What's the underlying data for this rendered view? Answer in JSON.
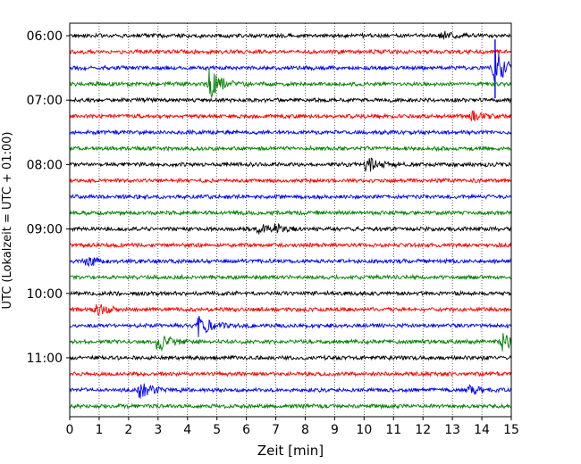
{
  "chart_data": {
    "type": "line",
    "title": "",
    "xlabel": "Zeit  [min]",
    "ylabel": "UTC (Lokalzeit = UTC + 01:00)",
    "xlim": [
      0,
      15
    ],
    "x_ticks": [
      0,
      1,
      2,
      3,
      4,
      5,
      6,
      7,
      8,
      9,
      10,
      11,
      12,
      13,
      14,
      15
    ],
    "x_tick_labels": [
      "0",
      "1",
      "2",
      "3",
      "4",
      "5",
      "6",
      "7",
      "8",
      "9",
      "10",
      "11",
      "12",
      "13",
      "14",
      "15"
    ],
    "y_tick_labels": [
      "06:00",
      "07:00",
      "08:00",
      "09:00",
      "10:00",
      "11:00"
    ],
    "grid": "vertical dotted lines at each minute",
    "colors": [
      "#000000",
      "#ff0000",
      "#0000ff",
      "#008000"
    ],
    "rows_per_hour": 4,
    "traces": [
      {
        "start": "06:00",
        "color": "#000000",
        "events": [
          {
            "x": 12.6,
            "amp": 0.25
          }
        ]
      },
      {
        "start": "06:15",
        "color": "#ff0000",
        "events": []
      },
      {
        "start": "06:30",
        "color": "#0000ff",
        "events": [
          {
            "x": 14.45,
            "amp": 1.0
          }
        ]
      },
      {
        "start": "06:45",
        "color": "#008000",
        "events": [
          {
            "x": 4.8,
            "amp": 0.8
          }
        ]
      },
      {
        "start": "07:00",
        "color": "#000000",
        "events": []
      },
      {
        "start": "07:15",
        "color": "#ff0000",
        "events": [
          {
            "x": 13.7,
            "amp": 0.25
          }
        ]
      },
      {
        "start": "07:30",
        "color": "#0000ff",
        "events": []
      },
      {
        "start": "07:45",
        "color": "#008000",
        "events": []
      },
      {
        "start": "08:00",
        "color": "#000000",
        "events": [
          {
            "x": 10.1,
            "amp": 0.45
          }
        ]
      },
      {
        "start": "08:15",
        "color": "#ff0000",
        "events": []
      },
      {
        "start": "08:30",
        "color": "#0000ff",
        "events": []
      },
      {
        "start": "08:45",
        "color": "#008000",
        "events": []
      },
      {
        "start": "09:00",
        "color": "#000000",
        "events": [
          {
            "x": 6.4,
            "amp": 0.3
          },
          {
            "x": 7.0,
            "amp": 0.2
          }
        ]
      },
      {
        "start": "09:15",
        "color": "#ff0000",
        "events": []
      },
      {
        "start": "09:30",
        "color": "#0000ff",
        "events": [
          {
            "x": 0.6,
            "amp": 0.25
          }
        ]
      },
      {
        "start": "09:45",
        "color": "#008000",
        "events": []
      },
      {
        "start": "10:00",
        "color": "#000000",
        "events": []
      },
      {
        "start": "10:15",
        "color": "#ff0000",
        "events": [
          {
            "x": 0.95,
            "amp": 0.3
          }
        ]
      },
      {
        "start": "10:30",
        "color": "#0000ff",
        "events": [
          {
            "x": 4.4,
            "amp": 0.6
          }
        ]
      },
      {
        "start": "10:45",
        "color": "#008000",
        "events": [
          {
            "x": 3.0,
            "amp": 0.6
          },
          {
            "x": 14.7,
            "amp": 0.45
          }
        ]
      },
      {
        "start": "11:00",
        "color": "#000000",
        "events": []
      },
      {
        "start": "11:15",
        "color": "#ff0000",
        "events": []
      },
      {
        "start": "11:30",
        "color": "#0000ff",
        "events": [
          {
            "x": 2.4,
            "amp": 0.4
          },
          {
            "x": 13.6,
            "amp": 0.2
          }
        ]
      },
      {
        "start": "11:45",
        "color": "#008000",
        "events": []
      }
    ]
  }
}
